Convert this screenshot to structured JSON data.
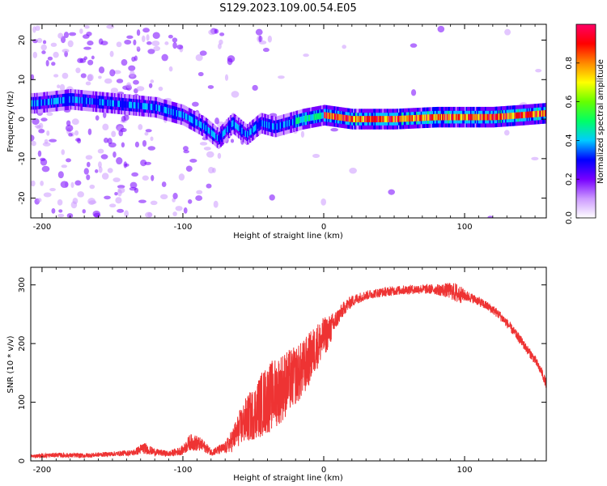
{
  "title": "S129.2023.109.00.54.E05",
  "chart_data": [
    {
      "type": "heatmap",
      "id": "spectrogram",
      "title": "",
      "xlabel": "Height of straight line (km)",
      "ylabel": "Frequency (Hz)",
      "xlim": [
        -208,
        158
      ],
      "ylim": [
        -25,
        24
      ],
      "xticks": [
        -200,
        -100,
        0,
        100
      ],
      "xtick_labels": [
        "-200",
        "-100",
        "0",
        "100"
      ],
      "yticks": [
        -20,
        -10,
        0,
        10,
        20
      ],
      "ytick_labels": [
        "-20",
        "-10",
        "0",
        "10",
        "20"
      ],
      "ridge": {
        "description_points_x": [
          -205,
          -180,
          -150,
          -120,
          -100,
          -85,
          -75,
          -65,
          -55,
          -45,
          -35,
          -25,
          -15,
          0,
          20,
          50,
          80,
          100,
          120,
          140,
          158
        ],
        "description_points_y": [
          4,
          5,
          4,
          3,
          1,
          -2,
          -5,
          -1,
          -4,
          -1,
          -2,
          -1,
          0,
          1,
          0,
          0,
          0.5,
          0.5,
          0.5,
          1,
          1.5
        ]
      },
      "colorbar": {
        "label": "Normalized spectral amplitude",
        "range": [
          0,
          1
        ],
        "ticks": [
          0.0,
          0.2,
          0.4,
          0.6,
          0.8
        ],
        "tick_labels": [
          "0.0",
          "0.2",
          "0.4",
          "0.6",
          "0.8"
        ],
        "colors": [
          "#ffffff",
          "#cc99ff",
          "#7700ff",
          "#0000ff",
          "#00ccff",
          "#00ff66",
          "#66ff00",
          "#ffff00",
          "#ff8800",
          "#ff0000",
          "#ff0066"
        ]
      }
    },
    {
      "type": "line",
      "id": "snr",
      "title": "",
      "xlabel": "Height of straight line (km)",
      "ylabel": "SNR (10 * v/v)",
      "xlim": [
        -208,
        158
      ],
      "ylim": [
        0,
        330
      ],
      "xticks": [
        -200,
        -100,
        0,
        100
      ],
      "xtick_labels": [
        "-200",
        "-100",
        "0",
        "100"
      ],
      "yticks": [
        0,
        100,
        200,
        300
      ],
      "ytick_labels": [
        "0",
        "100",
        "200",
        "300"
      ],
      "series": [
        {
          "name": "SNR",
          "color": "#ee3333",
          "x": [
            -208,
            -190,
            -170,
            -150,
            -135,
            -128,
            -120,
            -110,
            -100,
            -95,
            -90,
            -85,
            -80,
            -75,
            -70,
            -65,
            -60,
            -55,
            -50,
            -45,
            -40,
            -35,
            -30,
            -25,
            -20,
            -15,
            -10,
            -5,
            0,
            5,
            10,
            15,
            20,
            25,
            30,
            35,
            40,
            50,
            60,
            70,
            80,
            90,
            95,
            100,
            105,
            110,
            115,
            120,
            125,
            130,
            135,
            140,
            145,
            150,
            155,
            158
          ],
          "y": [
            8,
            10,
            9,
            12,
            14,
            22,
            15,
            12,
            18,
            32,
            30,
            25,
            15,
            18,
            22,
            35,
            55,
            70,
            80,
            95,
            105,
            115,
            125,
            135,
            145,
            155,
            175,
            195,
            210,
            225,
            245,
            262,
            272,
            278,
            282,
            285,
            287,
            290,
            292,
            293,
            292,
            290,
            285,
            282,
            278,
            272,
            265,
            258,
            248,
            235,
            220,
            205,
            188,
            172,
            150,
            130
          ],
          "noise": [
            3,
            4,
            4,
            4,
            5,
            10,
            6,
            5,
            8,
            14,
            14,
            10,
            6,
            8,
            10,
            20,
            30,
            40,
            45,
            55,
            60,
            60,
            60,
            55,
            50,
            50,
            45,
            40,
            35,
            25,
            15,
            12,
            10,
            9,
            8,
            8,
            8,
            8,
            8,
            8,
            9,
            14,
            18,
            10,
            8,
            8,
            8,
            8,
            8,
            8,
            8,
            8,
            8,
            8,
            8,
            8
          ]
        }
      ]
    }
  ]
}
